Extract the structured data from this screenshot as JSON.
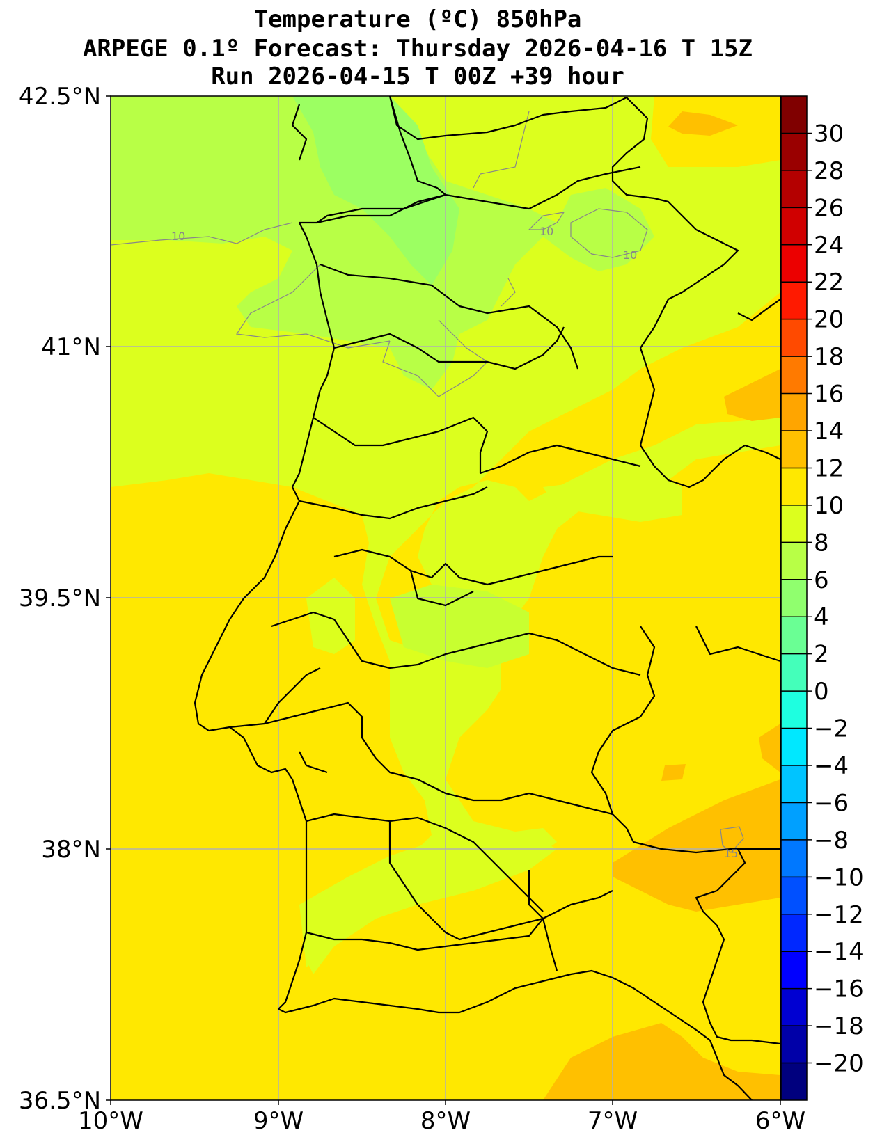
{
  "title": {
    "line1": "Temperature (ºC) 850hPa",
    "line2": "ARPEGE 0.1º Forecast: Thursday 2026-04-16 T 15Z",
    "line3": "Run 2026-04-15 T 00Z +39 hour"
  },
  "map": {
    "lat_labels": [
      "42.5°N",
      "41°N",
      "39.5°N",
      "38°N",
      "36.5°N"
    ],
    "lon_labels": [
      "10°W",
      "9°W",
      "8°W",
      "7°W",
      "6°W"
    ],
    "contour_labels": [
      "10",
      "10",
      "10",
      "15"
    ]
  },
  "colorbar": {
    "ticks": [
      "30",
      "28",
      "26",
      "24",
      "22",
      "20",
      "18",
      "16",
      "14",
      "12",
      "10",
      "8",
      "6",
      "4",
      "2",
      "0",
      "−2",
      "−4",
      "−6",
      "−8",
      "−10",
      "−12",
      "−14",
      "−16",
      "−18",
      "−20"
    ],
    "colors": [
      "#800000",
      "#9a0000",
      "#b40000",
      "#d00000",
      "#ec0000",
      "#ff1a00",
      "#ff4a00",
      "#ff7a00",
      "#ffa500",
      "#ffc000",
      "#ffe800",
      "#dcff1e",
      "#b8ff46",
      "#90ff6e",
      "#6aff94",
      "#44ffba",
      "#1effe0",
      "#00e8ff",
      "#00c4ff",
      "#00a0ff",
      "#0078ff",
      "#0050ff",
      "#0028ff",
      "#0000ff",
      "#0000d2",
      "#0000a8",
      "#00007e"
    ]
  },
  "colors": {
    "water_sea": "#dcff1e",
    "warm_yellow": "#ffe800",
    "orange": "#ffc000",
    "green_light": "#b8ff46",
    "green": "#9cff62"
  }
}
